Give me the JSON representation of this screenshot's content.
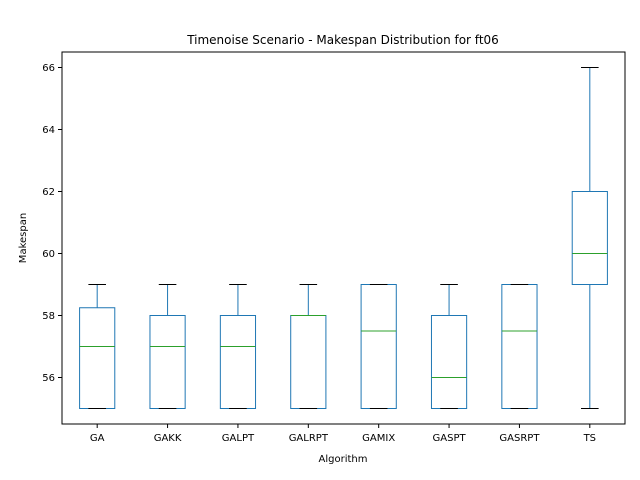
{
  "chart_data": {
    "type": "box",
    "title": "Timenoise Scenario - Makespan Distribution for ft06",
    "xlabel": "Algorithm",
    "ylabel": "Makespan",
    "ylim": [
      54.5,
      66.5
    ],
    "yticks": [
      56,
      58,
      60,
      62,
      64,
      66
    ],
    "grid": false,
    "colors": {
      "box": "#1f77b4",
      "median": "#2ca02c",
      "whisker_cap": "#000000"
    },
    "categories": [
      "GA",
      "GAKK",
      "GALPT",
      "GALRPT",
      "GAMIX",
      "GASPT",
      "GASRPT",
      "TS"
    ],
    "boxes": [
      {
        "label": "GA",
        "min": 55,
        "q1": 55,
        "median": 57,
        "q3": 58.25,
        "max": 59
      },
      {
        "label": "GAKK",
        "min": 55,
        "q1": 55,
        "median": 57,
        "q3": 58,
        "max": 59
      },
      {
        "label": "GALPT",
        "min": 55,
        "q1": 55,
        "median": 57,
        "q3": 58,
        "max": 59
      },
      {
        "label": "GALRPT",
        "min": 55,
        "q1": 55,
        "median": 58,
        "q3": 58,
        "max": 59
      },
      {
        "label": "GAMIX",
        "min": 55,
        "q1": 55,
        "median": 57.5,
        "q3": 59,
        "max": 59
      },
      {
        "label": "GASPT",
        "min": 55,
        "q1": 55,
        "median": 56,
        "q3": 58,
        "max": 59
      },
      {
        "label": "GASRPT",
        "min": 55,
        "q1": 55,
        "median": 57.5,
        "q3": 59,
        "max": 59
      },
      {
        "label": "TS",
        "min": 55,
        "q1": 59,
        "median": 60,
        "q3": 62,
        "max": 66
      }
    ]
  }
}
